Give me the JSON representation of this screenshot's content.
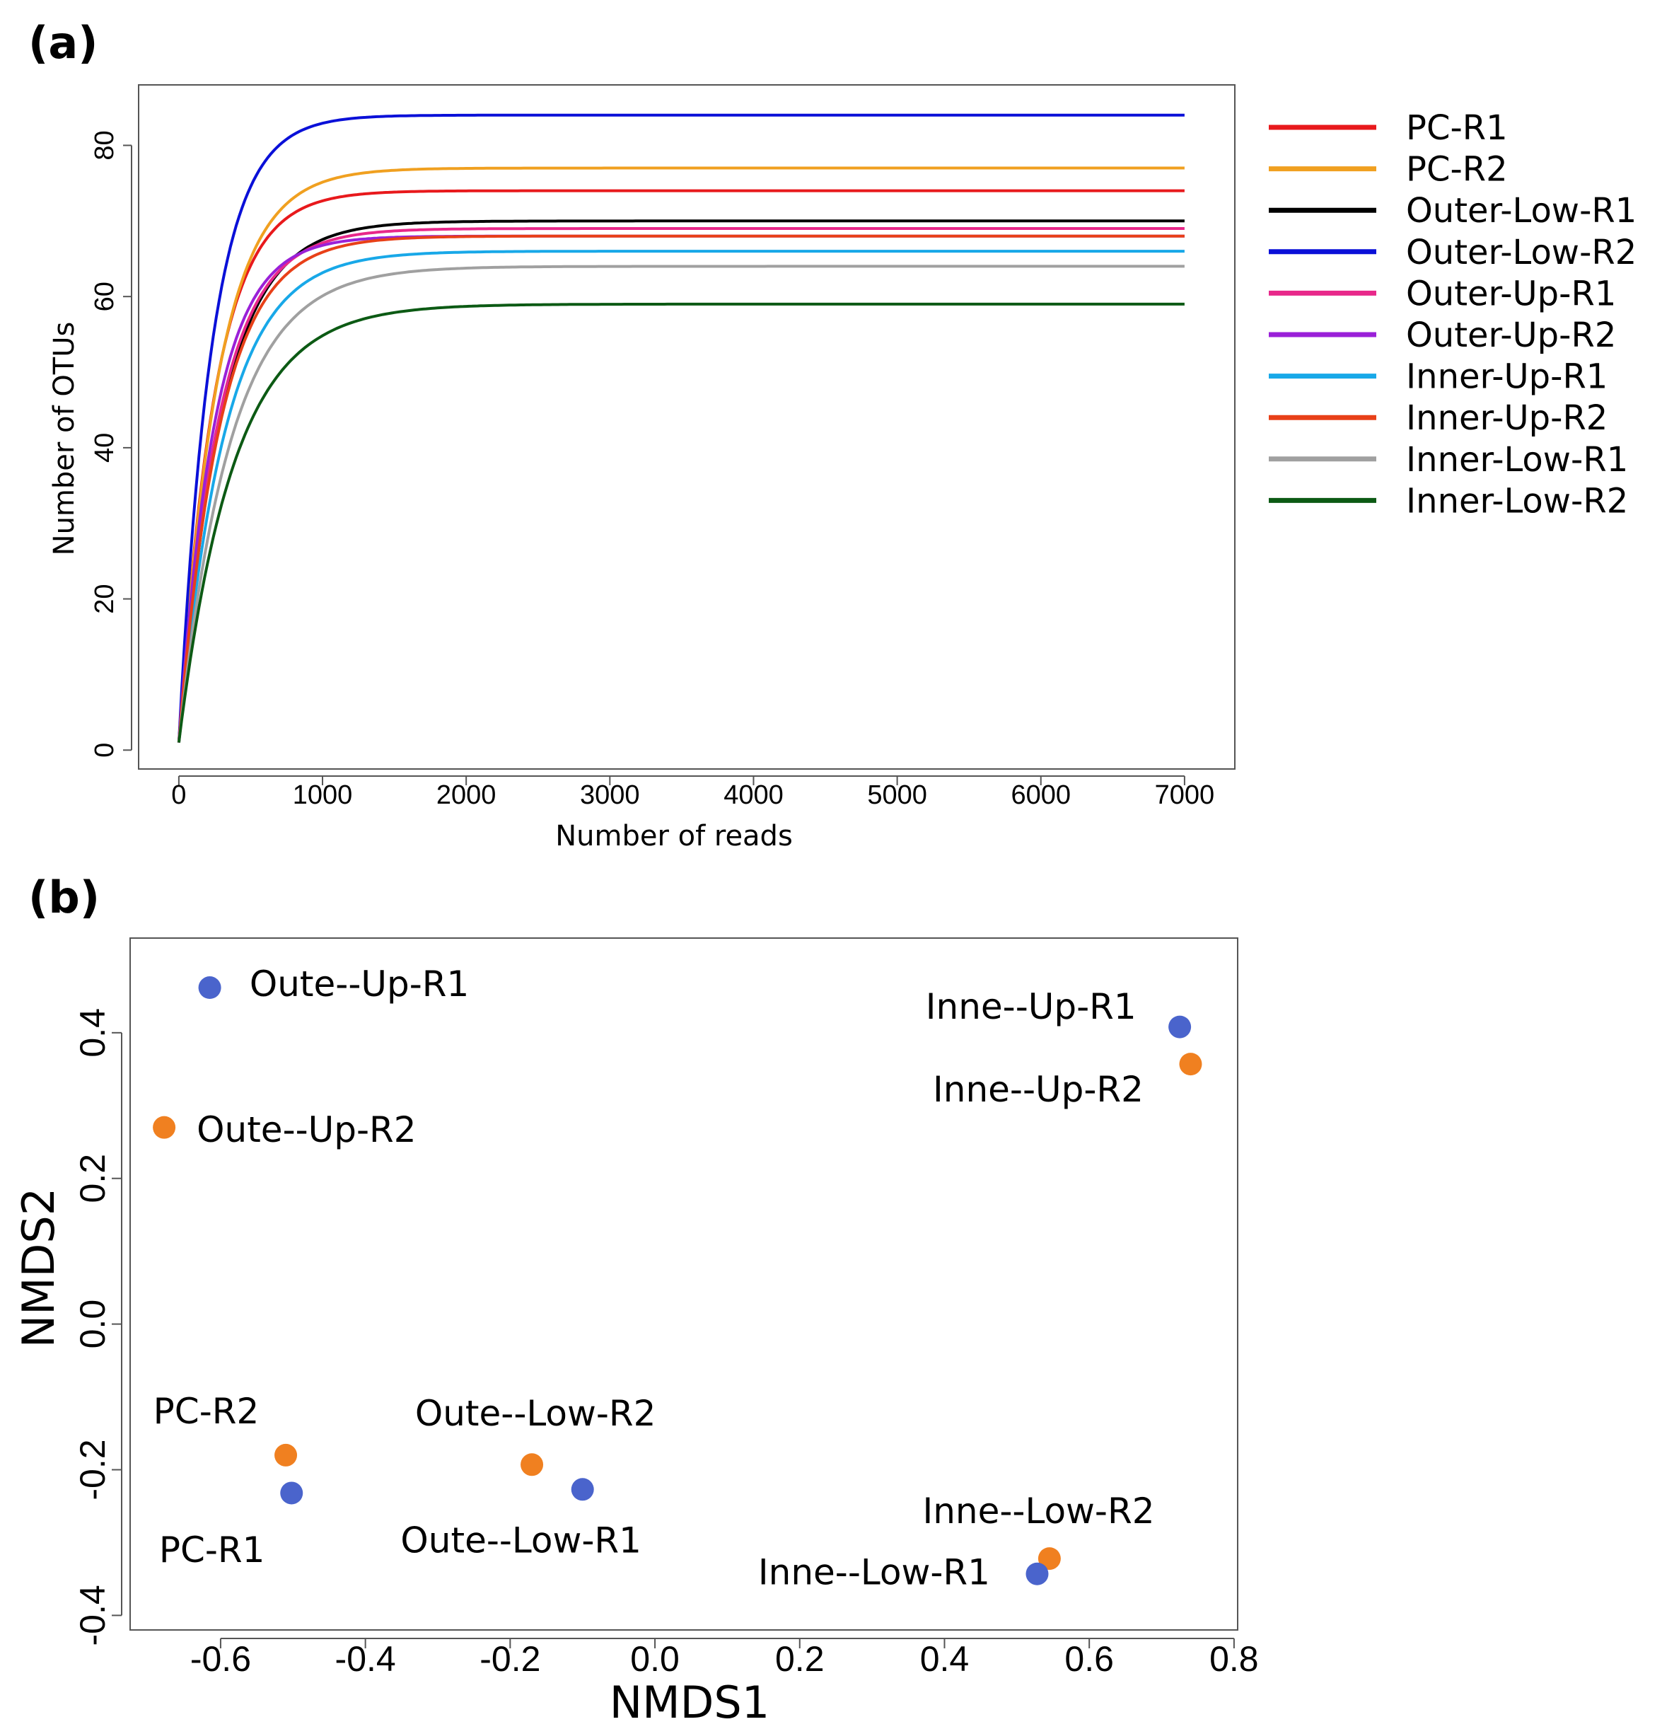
{
  "chart_data": [
    {
      "panel_label": "(a)",
      "type": "line",
      "xlabel": "Number of reads",
      "ylabel": "Number of OTUs",
      "xlim": [
        -280,
        7350
      ],
      "ylim": [
        -2.5,
        88
      ],
      "x_ticks": [
        0,
        1000,
        2000,
        3000,
        4000,
        5000,
        6000,
        7000
      ],
      "y_ticks": [
        0,
        20,
        40,
        60,
        80
      ],
      "legend_position": "right",
      "x_max": 7000,
      "series": [
        {
          "name": "PC-R1",
          "color": "#e8191c",
          "asymptote": 74,
          "rate": 250
        },
        {
          "name": "PC-R2",
          "color": "#f0a020",
          "asymptote": 77,
          "rate": 270
        },
        {
          "name": "Outer-Low-R1",
          "color": "#000000",
          "asymptote": 70,
          "rate": 300
        },
        {
          "name": "Outer-Low-R2",
          "color": "#0a10d8",
          "asymptote": 84,
          "rate": 230
        },
        {
          "name": "Outer-Up-R1",
          "color": "#e8288a",
          "asymptote": 69,
          "rate": 280
        },
        {
          "name": "Outer-Up-R2",
          "color": "#9a20d8",
          "asymptote": 68,
          "rate": 250
        },
        {
          "name": "Inner-Up-R1",
          "color": "#18a8e8",
          "asymptote": 66,
          "rate": 320
        },
        {
          "name": "Inner-Up-R2",
          "color": "#e84018",
          "asymptote": 68,
          "rate": 290
        },
        {
          "name": "Inner-Low-R1",
          "color": "#a0a0a0",
          "asymptote": 64,
          "rate": 360
        },
        {
          "name": "Inner-Low-R2",
          "color": "#0c5a14",
          "asymptote": 59,
          "rate": 380
        }
      ]
    },
    {
      "panel_label": "(b)",
      "type": "scatter",
      "xlabel": "NMDS1",
      "ylabel": "NMDS2",
      "xlim": [
        -0.725,
        0.805
      ],
      "ylim": [
        -0.42,
        0.53
      ],
      "x_ticks": [
        "-0.6",
        "-0.4",
        "-0.2",
        "0.0",
        "0.2",
        "0.4",
        "0.6",
        "0.8"
      ],
      "y_ticks": [
        "-0.4",
        "-0.2",
        "0.0",
        "0.2",
        "0.4"
      ],
      "points": [
        {
          "label": "Oute--Up-R1",
          "x": -0.615,
          "y": 0.462,
          "color": "#4a64cc",
          "label_anchor": "start",
          "label_dx": 0.055,
          "label_dy": 0.005
        },
        {
          "label": "Oute--Up-R2",
          "x": -0.678,
          "y": 0.27,
          "color": "#f08020",
          "label_anchor": "start",
          "label_dx": 0.045,
          "label_dy": -0.003
        },
        {
          "label": "Inne--Up-R1",
          "x": 0.725,
          "y": 0.408,
          "color": "#4a64cc",
          "label_anchor": "end",
          "label_dx": -0.06,
          "label_dy": 0.028
        },
        {
          "label": "Inne--Up-R2",
          "x": 0.74,
          "y": 0.357,
          "color": "#f08020",
          "label_anchor": "end",
          "label_dx": -0.065,
          "label_dy": -0.035
        },
        {
          "label": "PC-R2",
          "x": -0.51,
          "y": -0.18,
          "color": "#f08020",
          "label_anchor": "middle",
          "label_dx": -0.11,
          "label_dy": 0.06
        },
        {
          "label": "PC-R1",
          "x": -0.502,
          "y": -0.232,
          "color": "#4a64cc",
          "label_anchor": "middle",
          "label_dx": -0.11,
          "label_dy": -0.078
        },
        {
          "label": "Oute--Low-R2",
          "x": -0.17,
          "y": -0.193,
          "color": "#f08020",
          "label_anchor": "middle",
          "label_dx": 0.005,
          "label_dy": 0.07
        },
        {
          "label": "Oute--Low-R1",
          "x": -0.1,
          "y": -0.227,
          "color": "#4a64cc",
          "label_anchor": "middle",
          "label_dx": -0.085,
          "label_dy": -0.07
        },
        {
          "label": "Inne--Low-R2",
          "x": 0.545,
          "y": -0.322,
          "color": "#f08020",
          "label_anchor": "middle",
          "label_dx": -0.015,
          "label_dy": 0.065
        },
        {
          "label": "Inne--Low-R1",
          "x": 0.528,
          "y": -0.343,
          "color": "#4a64cc",
          "label_anchor": "end",
          "label_dx": -0.065,
          "label_dy": 0.002
        }
      ]
    }
  ]
}
